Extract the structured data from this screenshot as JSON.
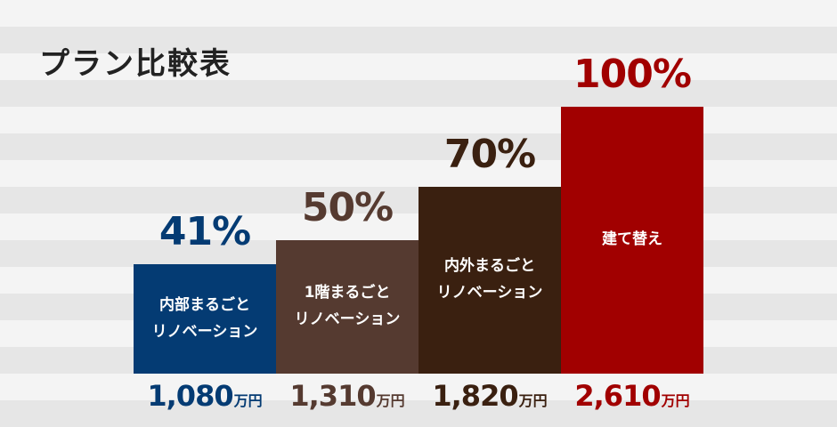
{
  "title": "プラン比較表",
  "chart_data": {
    "type": "bar",
    "title": "プラン比較表",
    "categories": [
      "内部まるごと\nリノベーション",
      "1階まるごと\nリノベーション",
      "内外まるごと\nリノベーション",
      "建て替え"
    ],
    "values": [
      41,
      50,
      70,
      100
    ],
    "value_labels": [
      "41%",
      "50%",
      "70%",
      "100%"
    ],
    "prices": [
      "1,080",
      "1,310",
      "1,820",
      "2,610"
    ],
    "price_unit": "万円",
    "colors": [
      "#043b73",
      "#553a30",
      "#3a2010",
      "#a10000"
    ],
    "ylim": [
      0,
      100
    ],
    "grid": false,
    "legend": "none"
  }
}
